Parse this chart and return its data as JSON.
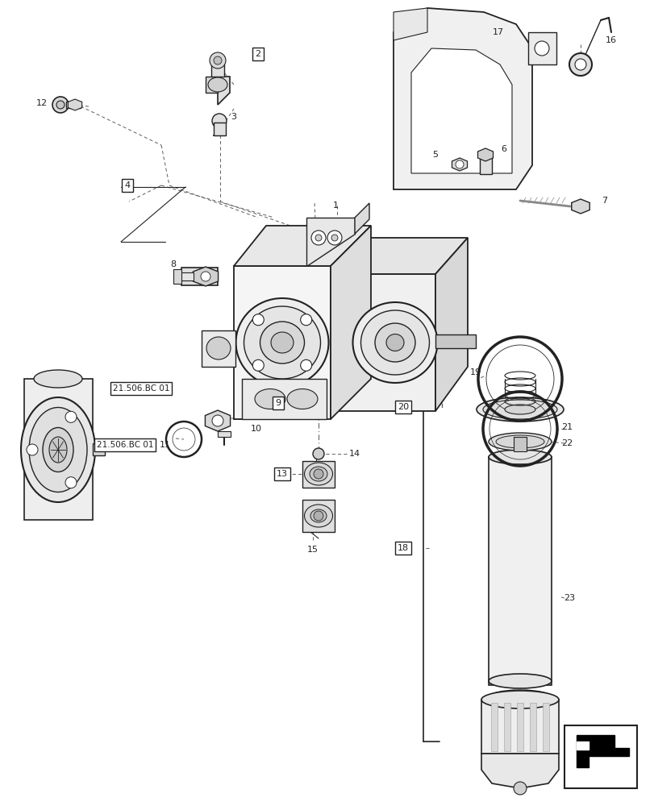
{
  "background_color": "#ffffff",
  "line_color": "#222222",
  "dash_color": "#666666",
  "label_color": "#000000",
  "fig_w": 8.12,
  "fig_h": 10.0,
  "dpi": 100
}
